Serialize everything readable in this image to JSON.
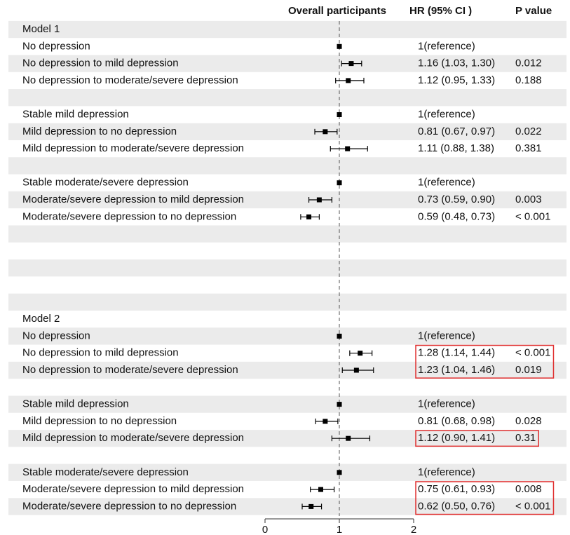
{
  "chart_data": {
    "type": "forest",
    "headers": {
      "plot": "Overall participants",
      "hr": "HR (95% CI )",
      "p": "P value"
    },
    "xlim": [
      0,
      2
    ],
    "xticks": [
      0,
      1,
      2
    ],
    "reference_line": 1,
    "highlight_color": "#e03030",
    "rows": [
      {
        "label": "Model 1"
      },
      {
        "label": "No depression",
        "hr": 1,
        "hr_text": "1(reference)"
      },
      {
        "label": "No depression to mild depression",
        "hr": 1.16,
        "lo": 1.03,
        "hi": 1.3,
        "hr_text": "1.16 (1.03, 1.30)",
        "p": "0.012"
      },
      {
        "label": "No depression to moderate/severe depression",
        "hr": 1.12,
        "lo": 0.95,
        "hi": 1.33,
        "hr_text": "1.12 (0.95, 1.33)",
        "p": "0.188"
      },
      null,
      {
        "label": "Stable mild depression",
        "hr": 1,
        "hr_text": "1(reference)"
      },
      {
        "label": "Mild depression to no depression",
        "hr": 0.81,
        "lo": 0.67,
        "hi": 0.97,
        "hr_text": "0.81 (0.67, 0.97)",
        "p": "0.022"
      },
      {
        "label": "Mild depression to moderate/severe depression",
        "hr": 1.11,
        "lo": 0.88,
        "hi": 1.38,
        "hr_text": "1.11 (0.88, 1.38)",
        "p": "0.381"
      },
      null,
      {
        "label": "Stable moderate/severe depression",
        "hr": 1,
        "hr_text": "1(reference)"
      },
      {
        "label": "Moderate/severe depression to mild depression",
        "hr": 0.73,
        "lo": 0.59,
        "hi": 0.9,
        "hr_text": "0.73 (0.59, 0.90)",
        "p": "0.003"
      },
      {
        "label": "Moderate/severe depression to no depression",
        "hr": 0.59,
        "lo": 0.48,
        "hi": 0.73,
        "hr_text": "0.59 (0.48, 0.73)",
        "p": "< 0.001"
      },
      null,
      null,
      null,
      null,
      null,
      {
        "label": "Model 2"
      },
      {
        "label": "No depression",
        "hr": 1,
        "hr_text": "1(reference)"
      },
      {
        "label": "No depression to mild depression",
        "hr": 1.28,
        "lo": 1.14,
        "hi": 1.44,
        "hr_text": "1.28 (1.14, 1.44)",
        "p": "< 0.001",
        "highlight": true
      },
      {
        "label": "No depression to moderate/severe depression",
        "hr": 1.23,
        "lo": 1.04,
        "hi": 1.46,
        "hr_text": "1.23 (1.04, 1.46)",
        "p": "0.019",
        "highlight": true
      },
      null,
      {
        "label": "Stable mild depression",
        "hr": 1,
        "hr_text": "1(reference)"
      },
      {
        "label": "Mild depression to no depression",
        "hr": 0.81,
        "lo": 0.68,
        "hi": 0.98,
        "hr_text": "0.81 (0.68, 0.98)",
        "p": "0.028"
      },
      {
        "label": "Mild depression to moderate/severe depression",
        "hr": 1.12,
        "lo": 0.9,
        "hi": 1.41,
        "hr_text": "1.12 (0.90, 1.41)",
        "p": "0.31",
        "highlight": true
      },
      null,
      {
        "label": "Stable moderate/severe depression",
        "hr": 1,
        "hr_text": "1(reference)"
      },
      {
        "label": "Moderate/severe depression to mild depression",
        "hr": 0.75,
        "lo": 0.61,
        "hi": 0.93,
        "hr_text": "0.75 (0.61, 0.93)",
        "p": "0.008",
        "highlight": true
      },
      {
        "label": "Moderate/severe depression to no depression",
        "hr": 0.62,
        "lo": 0.5,
        "hi": 0.76,
        "hr_text": "0.62 (0.50, 0.76)",
        "p": "< 0.001",
        "highlight": true
      }
    ]
  }
}
